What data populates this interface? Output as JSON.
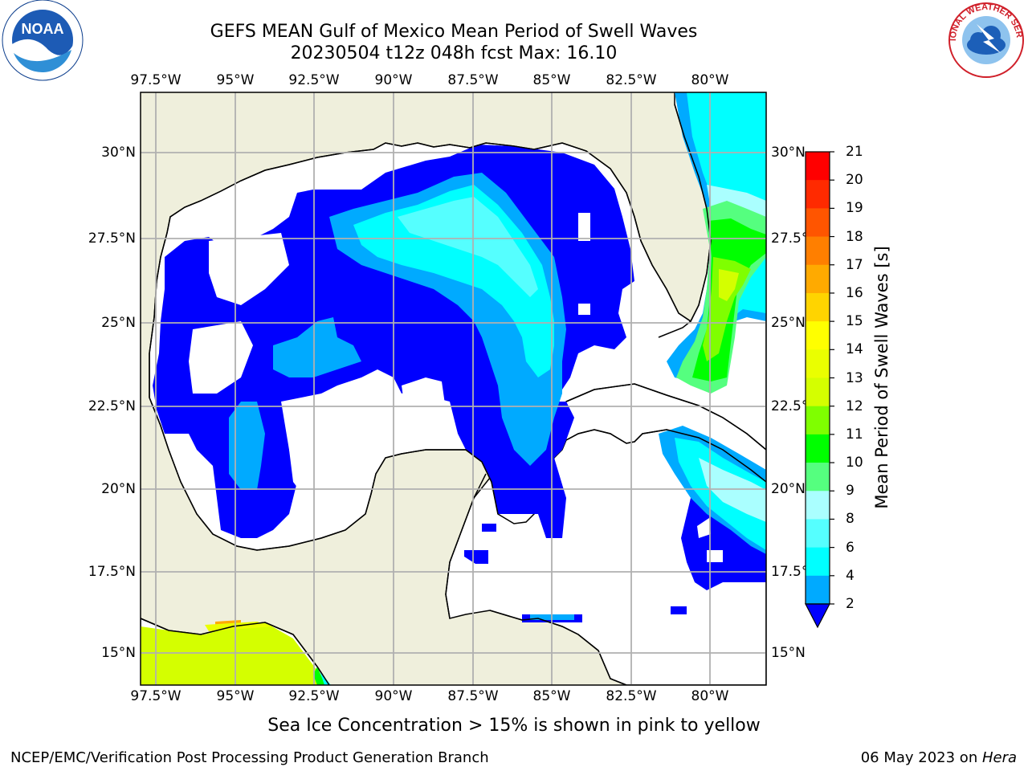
{
  "title": {
    "line1": "GEFS MEAN Gulf of Mexico Mean Period of Swell Waves",
    "line2": "20230504 t12z 048h fcst   Max: 16.10"
  },
  "map": {
    "lon_labels": [
      "97.5°W",
      "95°W",
      "92.5°W",
      "90°W",
      "87.5°W",
      "85°W",
      "82.5°W",
      "80°W"
    ],
    "lat_labels": [
      "30°N",
      "27.5°N",
      "25°N",
      "22.5°N",
      "20°N",
      "17.5°N",
      "15°N"
    ],
    "lon_range": [
      -98,
      -78.3
    ],
    "lat_range": [
      14,
      31.7
    ],
    "land_color": "#efefdc",
    "grid_color": "#b0b0b0"
  },
  "colorbar": {
    "label": "Mean Period of Swell Waves [s]",
    "ticks": [
      "21",
      "20",
      "19",
      "18",
      "17",
      "16",
      "15",
      "14",
      "13",
      "12",
      "11",
      "10",
      "9",
      "8",
      "6",
      "4",
      "2"
    ],
    "colors": [
      "#ff0000",
      "#ff2a00",
      "#ff5500",
      "#ff7f00",
      "#ffaa00",
      "#ffd400",
      "#ffff00",
      "#eaff00",
      "#d4ff00",
      "#7fff00",
      "#00ff00",
      "#55ff7f",
      "#aaffff",
      "#55ffff",
      "#00ffff",
      "#00aaff",
      "#0000ff"
    ]
  },
  "note": "Sea Ice Concentration > 15% is shown in pink to yellow",
  "footer": {
    "left": "NCEP/EMC/Verification Post Processing Product Generation Branch",
    "date": "06 May 2023 on ",
    "host": "Hera"
  },
  "logos": {
    "noaa_text": "NOAA",
    "nws_text": "NATIONAL WEATHER SERVICE"
  }
}
